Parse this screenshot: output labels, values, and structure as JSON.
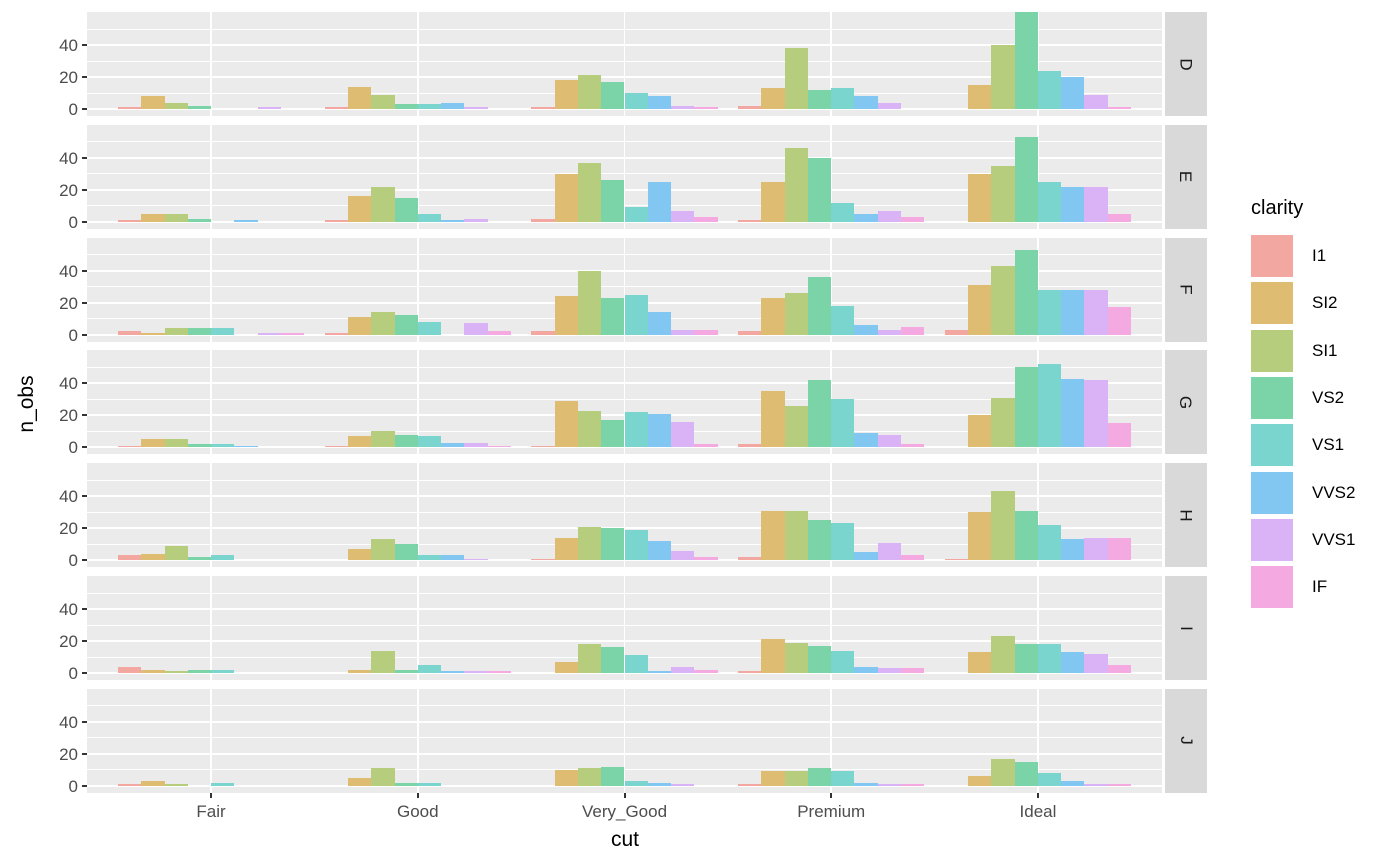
{
  "figure": {
    "background": "#FFFFFF"
  },
  "axes": {
    "x_title": "cut",
    "y_title": "n_obs",
    "x_tick_labels": [
      "Fair",
      "Good",
      "Very_Good",
      "Premium",
      "Ideal"
    ],
    "y_tick_labels": [
      "0",
      "20",
      "40"
    ]
  },
  "facets": {
    "labels": [
      "D",
      "E",
      "F",
      "G",
      "H",
      "I",
      "J"
    ]
  },
  "legend": {
    "title": "clarity",
    "items": [
      {
        "label": "I1",
        "color": "#F2A7A0"
      },
      {
        "label": "SI2",
        "color": "#DEBC72"
      },
      {
        "label": "SI1",
        "color": "#B7CD7E"
      },
      {
        "label": "VS2",
        "color": "#7BD4A7"
      },
      {
        "label": "VS1",
        "color": "#79D5CE"
      },
      {
        "label": "VVS2",
        "color": "#82C6F2"
      },
      {
        "label": "VVS1",
        "color": "#D9B3F5"
      },
      {
        "label": "IF",
        "color": "#F5A9E1"
      }
    ]
  },
  "panel": {
    "background": "#EBEBEB",
    "grid_color": "#FFFFFF",
    "strip_background": "#D9D9D9"
  },
  "chart_data": {
    "type": "bar",
    "title": "",
    "xlabel": "cut",
    "ylabel": "n_obs",
    "facet_rows": [
      "D",
      "E",
      "F",
      "G",
      "H",
      "I",
      "J"
    ],
    "categories": [
      "Fair",
      "Good",
      "Very_Good",
      "Premium",
      "Ideal"
    ],
    "series_levels": [
      "I1",
      "SI2",
      "SI1",
      "VS2",
      "VS1",
      "VVS2",
      "VVS1",
      "IF"
    ],
    "legend_title": "clarity",
    "legend_position": "right",
    "y_ticks": [
      0,
      20,
      40
    ],
    "ylim": [
      0,
      61
    ],
    "grid": "white major at 0/20/40, white minor at 10/30/50",
    "colors": {
      "I1": "#F2A7A0",
      "SI2": "#DEBC72",
      "SI1": "#B7CD7E",
      "VS2": "#7BD4A7",
      "VS1": "#79D5CE",
      "VVS2": "#82C6F2",
      "VVS1": "#D9B3F5",
      "IF": "#F5A9E1"
    },
    "values": {
      "D": {
        "Fair": [
          1,
          8,
          4,
          2,
          0,
          0,
          1,
          0
        ],
        "Good": [
          1,
          14,
          9,
          3,
          3,
          4,
          1,
          0
        ],
        "Very_Good": [
          1,
          18,
          21,
          17,
          10,
          8,
          2,
          1
        ],
        "Premium": [
          2,
          13,
          38,
          12,
          13,
          8,
          4,
          0
        ],
        "Ideal": [
          0,
          15,
          40,
          61,
          24,
          20,
          9,
          1
        ]
      },
      "E": {
        "Fair": [
          1,
          5,
          5,
          2,
          0,
          1,
          0,
          0
        ],
        "Good": [
          1,
          16,
          22,
          15,
          5,
          1,
          2,
          0
        ],
        "Very_Good": [
          2,
          30,
          37,
          26,
          9,
          25,
          7,
          3
        ],
        "Premium": [
          1,
          25,
          46,
          40,
          12,
          5,
          7,
          3
        ],
        "Ideal": [
          0,
          30,
          35,
          53,
          25,
          22,
          22,
          5
        ]
      },
      "F": {
        "Fair": [
          2,
          1,
          4,
          4,
          4,
          0,
          1,
          1
        ],
        "Good": [
          1,
          11,
          14,
          12,
          8,
          0,
          7,
          2
        ],
        "Very_Good": [
          2,
          24,
          40,
          23,
          25,
          14,
          3,
          3
        ],
        "Premium": [
          2,
          23,
          26,
          36,
          18,
          6,
          3,
          5
        ],
        "Ideal": [
          3,
          31,
          43,
          53,
          28,
          28,
          28,
          17
        ]
      },
      "G": {
        "Fair": [
          1,
          5,
          5,
          2,
          2,
          1,
          0,
          0
        ],
        "Good": [
          1,
          7,
          10,
          8,
          7,
          3,
          3,
          1
        ],
        "Very_Good": [
          1,
          29,
          23,
          17,
          22,
          21,
          16,
          2
        ],
        "Premium": [
          2,
          35,
          26,
          42,
          30,
          9,
          8,
          2
        ],
        "Ideal": [
          0,
          20,
          31,
          50,
          52,
          43,
          42,
          15
        ]
      },
      "H": {
        "Fair": [
          3,
          4,
          9,
          2,
          3,
          0,
          0,
          0
        ],
        "Good": [
          0,
          7,
          13,
          10,
          3,
          3,
          1,
          0
        ],
        "Very_Good": [
          1,
          14,
          21,
          20,
          19,
          12,
          6,
          2
        ],
        "Premium": [
          2,
          31,
          31,
          25,
          23,
          5,
          11,
          3
        ],
        "Ideal": [
          1,
          30,
          43,
          31,
          22,
          13,
          14,
          14
        ]
      },
      "I": {
        "Fair": [
          4,
          2,
          1,
          2,
          2,
          0,
          0,
          0
        ],
        "Good": [
          0,
          2,
          14,
          2,
          5,
          1,
          1,
          1
        ],
        "Very_Good": [
          0,
          7,
          18,
          16,
          11,
          1,
          4,
          2
        ],
        "Premium": [
          1,
          21,
          19,
          17,
          14,
          4,
          3,
          3
        ],
        "Ideal": [
          0,
          13,
          23,
          18,
          18,
          13,
          12,
          5
        ]
      },
      "J": {
        "Fair": [
          1,
          3,
          1,
          0,
          2,
          0,
          0,
          0
        ],
        "Good": [
          0,
          5,
          11,
          2,
          2,
          0,
          0,
          0
        ],
        "Very_Good": [
          0,
          10,
          11,
          12,
          3,
          2,
          1,
          0
        ],
        "Premium": [
          1,
          9,
          9,
          11,
          9,
          2,
          1,
          1
        ],
        "Ideal": [
          0,
          6,
          17,
          15,
          8,
          3,
          1,
          1
        ]
      }
    }
  }
}
